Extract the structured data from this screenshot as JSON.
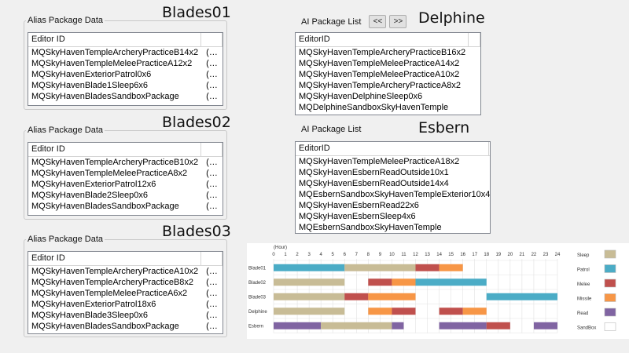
{
  "panels": [
    {
      "title": "Blades01",
      "group_label": "Alias Package Data",
      "header": "Editor ID",
      "rows": [
        "MQSkyHavenTempleArcheryPracticeB14x2",
        "MQSkyHavenTempleMeleePracticeA12x2",
        "MQSkyHavenExteriorPatrol0x6",
        "MQSkyHavenBlade1Sleep6x6",
        "MQSkyHavenBladesSandboxPackage"
      ]
    },
    {
      "title": "Blades02",
      "group_label": "Alias Package Data",
      "header": "Editor ID",
      "rows": [
        "MQSkyHavenTempleArcheryPracticeB10x2",
        "MQSkyHavenTempleMeleePracticeA8x2",
        "MQSkyHavenExteriorPatrol12x6",
        "MQSkyHavenBlade2Sleep0x6",
        "MQSkyHavenBladesSandboxPackage"
      ]
    },
    {
      "title": "Blades03",
      "group_label": "Alias Package Data",
      "header": "Editor ID",
      "rows": [
        "MQSkyHavenTempleArcheryPracticeA10x2",
        "MQSkyHavenTempleArcheryPracticeB8x2",
        "MQSkyHavenTempleMeleePracticeA6x2",
        "MQSkyHavenExteriorPatrol18x6",
        "MQSkyHavenBlade3Sleep0x6",
        "MQSkyHavenBladesSandboxPackage"
      ]
    }
  ],
  "row_suffix": "(…",
  "ai_lists": [
    {
      "title": "Delphine",
      "list_label": "AI Package List",
      "prev_label": "<<",
      "next_label": ">>",
      "header": "EditorID",
      "rows": [
        "MQSkyHavenTempleArcheryPracticeB16x2",
        "MQSkyHavenTempleMeleePracticeA14x2",
        "MQSkyHavenTempleMeleePracticeA10x2",
        "MQSkyHavenTempleArcheryPracticeA8x2",
        "MQSkyHavenDelphineSleep0x6",
        "MQDelphineSandboxSkyHavenTemple"
      ]
    },
    {
      "title": "Esbern",
      "list_label": "AI Package List",
      "header": "EditorID",
      "rows": [
        "MQSkyHavenTempleMeleePracticeA18x2",
        "MQSkyHavenEsbernReadOutside10x1",
        "MQSkyHavenEsbernReadOutside14x4",
        "MQEsbernSandboxSkyHavenTempleExterior10x4",
        "MQSkyHavenEsbernRead22x6",
        "MQSkyHavenEsbernSleep4x6",
        "MQEsbernSandboxSkyHavenTemple"
      ]
    }
  ],
  "chart_data": {
    "type": "gantt",
    "axis_unit_label": "(Hour)",
    "ticks": [
      0,
      1,
      2,
      3,
      4,
      5,
      6,
      7,
      8,
      9,
      10,
      11,
      12,
      13,
      14,
      15,
      16,
      17,
      18,
      19,
      20,
      21,
      22,
      23,
      24
    ],
    "xlim": [
      0,
      24
    ],
    "grid": true,
    "categories": [
      "Blade01",
      "Blade02",
      "Blade03",
      "Delphine",
      "Esbern"
    ],
    "legend": [
      {
        "name": "Sleep",
        "color": "#c8bc96"
      },
      {
        "name": "Patrol",
        "color": "#4bacc6"
      },
      {
        "name": "Melee",
        "color": "#c0504d"
      },
      {
        "name": "Missile",
        "color": "#f79646"
      },
      {
        "name": "Read",
        "color": "#8064a2"
      },
      {
        "name": "SandBox",
        "color": "#ffffff"
      }
    ],
    "segments": [
      {
        "row": 0,
        "start": 0,
        "end": 6,
        "activity": "Patrol"
      },
      {
        "row": 0,
        "start": 6,
        "end": 12,
        "activity": "Sleep"
      },
      {
        "row": 0,
        "start": 12,
        "end": 14,
        "activity": "Melee"
      },
      {
        "row": 0,
        "start": 14,
        "end": 16,
        "activity": "Missile"
      },
      {
        "row": 1,
        "start": 0,
        "end": 6,
        "activity": "Sleep"
      },
      {
        "row": 1,
        "start": 8,
        "end": 10,
        "activity": "Melee"
      },
      {
        "row": 1,
        "start": 10,
        "end": 12,
        "activity": "Missile"
      },
      {
        "row": 1,
        "start": 12,
        "end": 18,
        "activity": "Patrol"
      },
      {
        "row": 2,
        "start": 0,
        "end": 6,
        "activity": "Sleep"
      },
      {
        "row": 2,
        "start": 6,
        "end": 8,
        "activity": "Melee"
      },
      {
        "row": 2,
        "start": 8,
        "end": 12,
        "activity": "Missile"
      },
      {
        "row": 2,
        "start": 18,
        "end": 24,
        "activity": "Patrol"
      },
      {
        "row": 3,
        "start": 0,
        "end": 6,
        "activity": "Sleep"
      },
      {
        "row": 3,
        "start": 8,
        "end": 10,
        "activity": "Missile"
      },
      {
        "row": 3,
        "start": 10,
        "end": 12,
        "activity": "Melee"
      },
      {
        "row": 3,
        "start": 14,
        "end": 16,
        "activity": "Melee"
      },
      {
        "row": 3,
        "start": 16,
        "end": 18,
        "activity": "Missile"
      },
      {
        "row": 4,
        "start": 0,
        "end": 4,
        "activity": "Read"
      },
      {
        "row": 4,
        "start": 4,
        "end": 10,
        "activity": "Sleep"
      },
      {
        "row": 4,
        "start": 10,
        "end": 11,
        "activity": "Read"
      },
      {
        "row": 4,
        "start": 14,
        "end": 18,
        "activity": "Read"
      },
      {
        "row": 4,
        "start": 18,
        "end": 20,
        "activity": "Melee"
      },
      {
        "row": 4,
        "start": 22,
        "end": 24,
        "activity": "Read"
      }
    ]
  }
}
